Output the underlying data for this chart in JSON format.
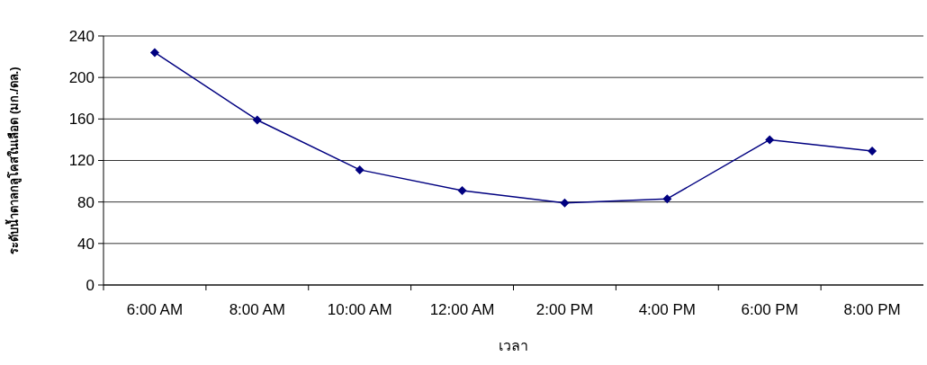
{
  "chart_data": {
    "type": "line",
    "xlabel": "เวลา",
    "ylabel": "ระดับน้ำตาลกลูโคสในเลือด (มก./ดล.)",
    "categories": [
      "6:00 AM",
      "8:00 AM",
      "10:00 AM",
      "12:00 AM",
      "2:00 PM",
      "4:00 PM",
      "6:00 PM",
      "8:00 PM"
    ],
    "series": [
      {
        "color": "#000080",
        "values": [
          224,
          159,
          111,
          91,
          79,
          83,
          140,
          129
        ]
      }
    ],
    "ylim": [
      0,
      240
    ],
    "yticks": [
      0,
      40,
      80,
      120,
      160,
      200,
      240
    ],
    "grid": "y",
    "marker": "diamond",
    "line_style": "solid"
  }
}
